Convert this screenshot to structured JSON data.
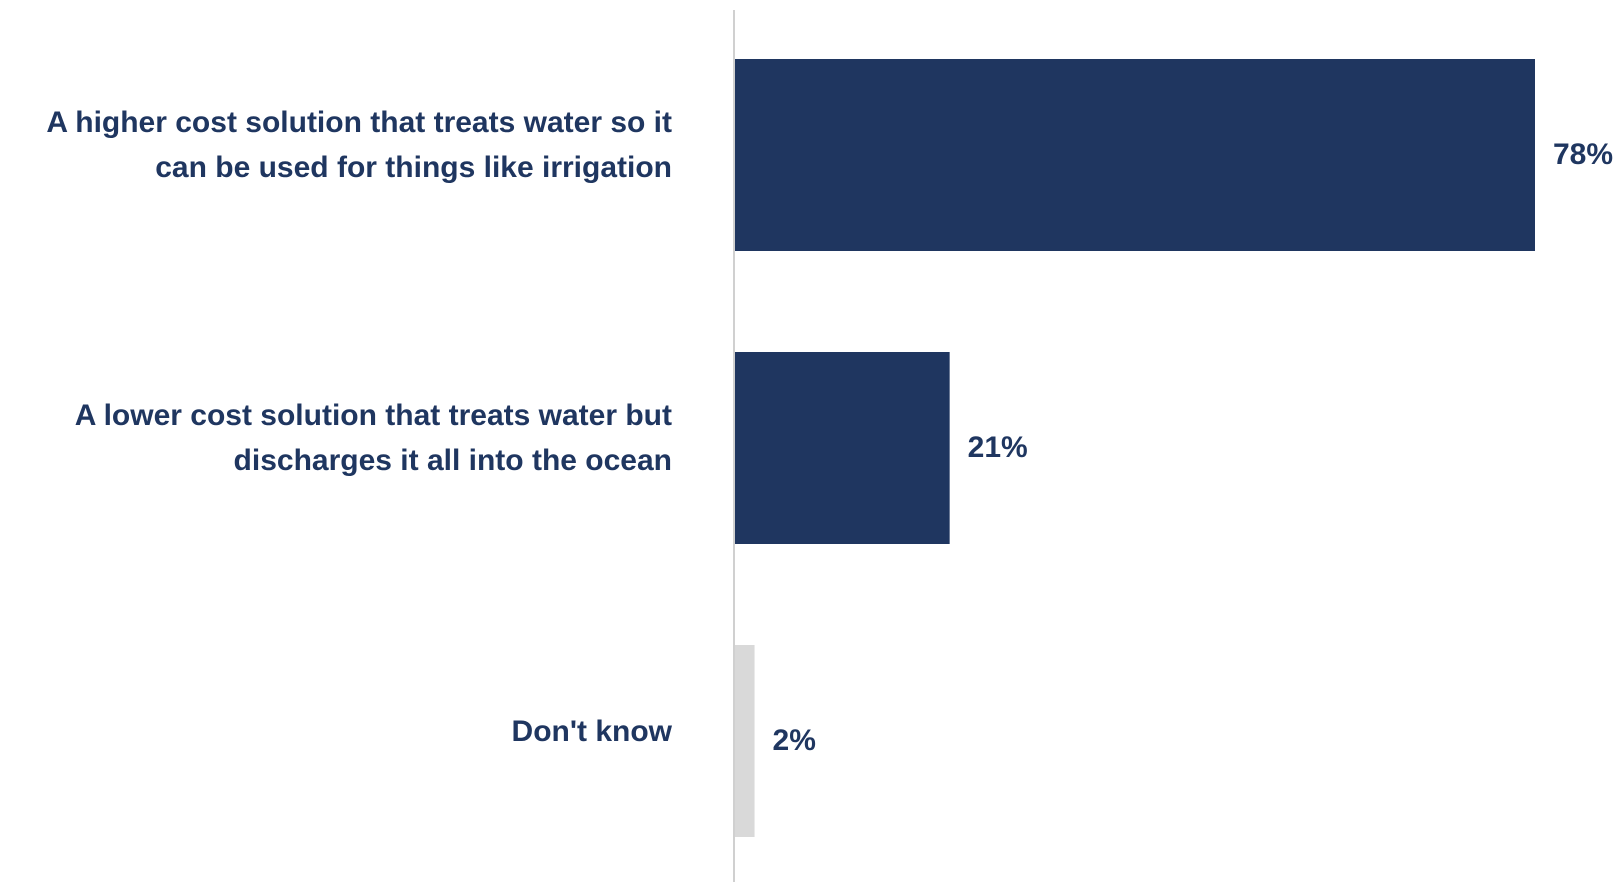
{
  "chart_data": {
    "type": "bar",
    "orientation": "horizontal",
    "title": "",
    "xlabel": "",
    "ylabel": "",
    "xlim": [
      0,
      100
    ],
    "grid": false,
    "legend": "none",
    "categories": [
      "A higher cost solution that treats water so it can be used for things like irrigation",
      "A lower cost solution that treats water but discharges it all into the ocean",
      "Don't know"
    ],
    "values": [
      78,
      21,
      2
    ],
    "value_labels": [
      "78%",
      "21%",
      "2%"
    ],
    "bar_colors": [
      "#1f3660",
      "#1f3660",
      "#d9d9d9"
    ],
    "text_color": "#1f3660",
    "axis_color": "#d0d0d0"
  }
}
